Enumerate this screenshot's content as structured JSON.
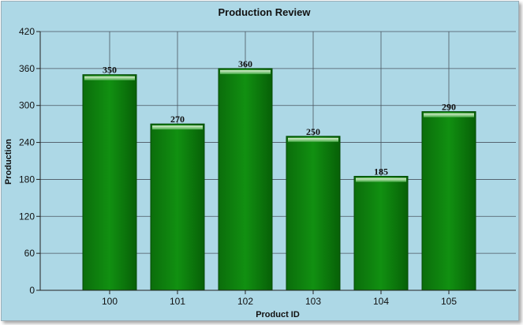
{
  "chart_data": {
    "type": "bar",
    "title": "Production Review",
    "xlabel": "Product ID",
    "ylabel": "Production",
    "categories": [
      "100",
      "101",
      "102",
      "103",
      "104",
      "105"
    ],
    "values": [
      350,
      270,
      360,
      250,
      185,
      290
    ],
    "data_labels": [
      "350",
      "270",
      "360",
      "250",
      "185",
      "290"
    ],
    "yticks": [
      "0",
      "60",
      "120",
      "180",
      "240",
      "300",
      "360",
      "420"
    ],
    "ylim": [
      0,
      420
    ],
    "grid": true,
    "legend": "none",
    "colors": {
      "background": "#add8e6",
      "bar": "#0a7a0a",
      "bar_dark": "#075d07",
      "bar_light": "#1f9a1f",
      "grid": "#4a5560",
      "axis": "#222222"
    }
  }
}
